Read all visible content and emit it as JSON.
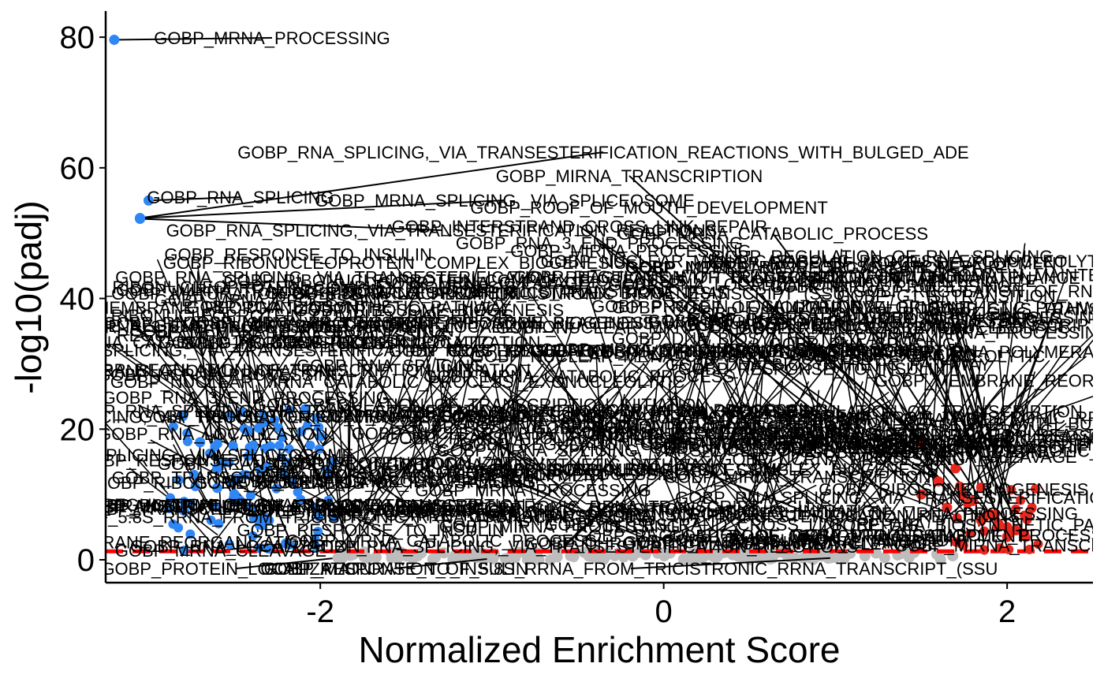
{
  "chart_data": {
    "type": "scatter",
    "xlabel": "Normalized Enrichment Score",
    "ylabel": "-log10(padj)",
    "xlim": [
      -3.25,
      2.5
    ],
    "ylim": [
      -3.5,
      84
    ],
    "x_ticks": [
      -2,
      0,
      2
    ],
    "x_tick_labels": [
      "-2",
      "0",
      "2"
    ],
    "y_ticks": [
      0,
      20,
      40,
      60,
      80
    ],
    "y_tick_labels": [
      "0",
      "20",
      "40",
      "60",
      "80"
    ],
    "threshold": {
      "y": 1.3,
      "color": "#ff0000",
      "style": "dashed"
    },
    "colors": {
      "down": "#2f86f5",
      "up": "#e8281e",
      "ns": "#bdbdbd",
      "axis": "#000000"
    },
    "grid": false,
    "legend": "none",
    "labeled_points": [
      {
        "label": "GOBP_MRNA_PROCESSING",
        "x": -3.2,
        "y": 79.6,
        "color": "down"
      },
      {
        "label": "GOBP_RNA_SPLICING,_VIA_TRANSESTERIFICATION_REACTIONS_WITH_BULGED_ADE",
        "x": -3.05,
        "y": 52.3,
        "color": "down"
      },
      {
        "label": "GOBP_RNA_SPLICING",
        "x": -3.0,
        "y": 55.0,
        "color": "down"
      },
      {
        "label": "GOBP_MRNA_SPLICING,_VIA_SPLICEOSOME",
        "x": -3.05,
        "y": 52.3,
        "color": "down"
      },
      {
        "label": "GOBP_RNA_SPLICING,_VIA_TRANSESTERIFICATION_REACTIONS",
        "x": -3.05,
        "y": 52.2,
        "color": "down"
      },
      {
        "label": "GOBP_MIRNA_TRANSCRIPTION",
        "x": 1.5,
        "y": 18,
        "color": "up"
      },
      {
        "label": "GOBP_ROOF_OF_MOUTH_DEVELOPMENT",
        "x": 1.7,
        "y": 14,
        "color": "up"
      },
      {
        "label": "GOBP_INTERSTRAND_CROSS_LINK_REPAIR",
        "x": 1.6,
        "y": 12,
        "color": "up"
      },
      {
        "label": "GOBP_RNA_3_END_PROCESSING",
        "x": 1.5,
        "y": 10,
        "color": "up"
      },
      {
        "label": "GOBP_MRNA_CATABOLIC_PROCESS",
        "x": 1.8,
        "y": 9,
        "color": "up"
      },
      {
        "label": "GOBP_MIRNA_PROCESSING",
        "x": 1.65,
        "y": 8,
        "color": "up"
      },
      {
        "label": "GOBP_NUCLEAR_MRNA_CATABOLIC_PROCESS,_EXONUCLEOLYTIC",
        "x": 1.9,
        "y": 7,
        "color": "up"
      },
      {
        "label": "GOBP_REGULATION_OF_TRANSCRIPTION_INITIATION",
        "x": 1.85,
        "y": 6,
        "color": "up"
      },
      {
        "label": "GOBP_CHROMATIN_MAINTENANCE",
        "x": 1.95,
        "y": 5.5,
        "color": "up"
      },
      {
        "label": "GOBP_G1_S_TRANSITION",
        "x": 2.0,
        "y": 5,
        "color": "up"
      },
      {
        "label": "GOBP_DNA_BIOSYNTHETIC_PATHWAY",
        "x": 2.05,
        "y": 4.5,
        "color": "up"
      },
      {
        "label": "GOBP_POSITIVE_REGULATION_OF_TRANSCRIPTION",
        "x": 2.1,
        "y": 4,
        "color": "up"
      },
      {
        "label": "GOBP_TRANSCRIPTION_BY_RNA_POLYMERASE_II",
        "x": 2.0,
        "y": 3.5,
        "color": "up"
      },
      {
        "label": "GOBP_RIBONUCLEOPROTEIN_COMPLEX_BIOGENESIS",
        "x": -2.8,
        "y": 22,
        "color": "down"
      },
      {
        "label": "GOBP_REGULATION_OF_MRNA_PROCESSING",
        "x": -2.7,
        "y": 18,
        "color": "down"
      },
      {
        "label": "GOBP_NCRNA_PROCESSING",
        "x": -2.6,
        "y": 14,
        "color": "down"
      },
      {
        "label": "GOBP_RNA_LOCALIZATION",
        "x": -2.5,
        "y": 10,
        "color": "down"
      },
      {
        "label": "GOBP_MRNA_CLEAVAGE",
        "x": -2.2,
        "y": 2.5,
        "color": "down"
      },
      {
        "label": "GOBP_REGULATION_OF_RNA_SPLICING",
        "x": -2.3,
        "y": 6,
        "color": "down"
      },
      {
        "label": "GOBP_RIBOSOME_BIOGENESIS",
        "x": -2.4,
        "y": 8,
        "color": "down"
      },
      {
        "label": "GOBP_MEMBRANE_REORGANIZATION",
        "x": -2.6,
        "y": 11,
        "color": "down"
      },
      {
        "label": "GOBP_TRANSLATIONAL_INITIATION",
        "x": -2.5,
        "y": 9,
        "color": "down"
      },
      {
        "label": "GOBP_PROTEIN_LOCALIZATION",
        "x": -1.9,
        "y": 0.3,
        "color": "ns"
      },
      {
        "label": "GOBP_MATURATION_OF_5.8S_RRNA_FROM_TRICISTRONIC_RRNA_TRANSCRIPT_(SSU",
        "x": 1.0,
        "y": 0.3,
        "color": "ns"
      },
      {
        "label": "GOBP_RESPONSE_TO_INSULIN",
        "x": -1.0,
        "y": 0.2,
        "color": "ns"
      }
    ]
  }
}
